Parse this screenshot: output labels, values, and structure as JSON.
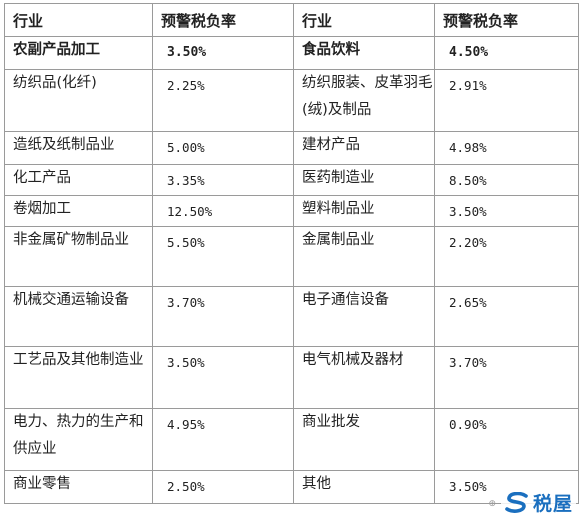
{
  "header": {
    "industry_a": "行业",
    "rate_a": "预警税负率",
    "industry_b": "行业",
    "rate_b": "预警税负率"
  },
  "rows": [
    {
      "industry_a": "农副产品加工",
      "rate_a": "3.50%",
      "industry_b": "食品饮料",
      "rate_b": "4.50%"
    },
    {
      "industry_a": "纺织品(化纤)",
      "rate_a": "2.25%",
      "industry_b": "纺织服装、皮革羽毛(绒)及制品",
      "rate_b": "2.91%"
    },
    {
      "industry_a": "造纸及纸制品业",
      "rate_a": "5.00%",
      "industry_b": "建材产品",
      "rate_b": "4.98%"
    },
    {
      "industry_a": "化工产品",
      "rate_a": "3.35%",
      "industry_b": "医药制造业",
      "rate_b": "8.50%"
    },
    {
      "industry_a": "卷烟加工",
      "rate_a": "12.50%",
      "industry_b": "塑料制品业",
      "rate_b": "3.50%"
    },
    {
      "industry_a": "非金属矿物制品业",
      "rate_a": "5.50%",
      "industry_b": "金属制品业",
      "rate_b": "2.20%"
    },
    {
      "industry_a": "机械交通运输设备",
      "rate_a": "3.70%",
      "industry_b": "电子通信设备",
      "rate_b": "2.65%"
    },
    {
      "industry_a": "工艺品及其他制造业",
      "rate_a": "3.50%",
      "industry_b": "电气机械及器材",
      "rate_b": "3.70%"
    },
    {
      "industry_a": "电力、热力的生产和供应业",
      "rate_a": "4.95%",
      "industry_b": "商业批发",
      "rate_b": "0.90%"
    },
    {
      "industry_a": "商业零售",
      "rate_a": "2.50%",
      "industry_b": "其他",
      "rate_b": "3.50%"
    }
  ],
  "watermark": {
    "logo_icon": "s-swirl-logo-icon",
    "brand_text": "税屋",
    "small_text": "⊕",
    "brand_color": "#1a6fbf"
  }
}
